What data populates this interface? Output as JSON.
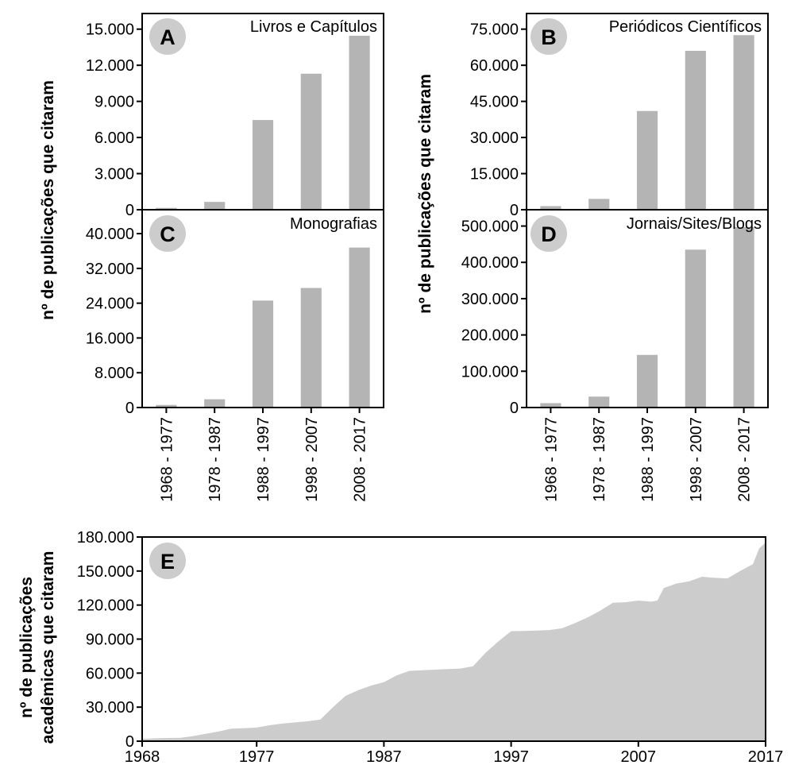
{
  "y_axis_label_top": "nº de publicações que citaram",
  "y_axis_label_bottom_line1": "nº de publicações",
  "y_axis_label_bottom_line2": "acadêmicas que citaram",
  "categories": [
    "1968 - 1977",
    "1978 - 1987",
    "1988 - 1997",
    "1998 - 2007",
    "2008 - 2017"
  ],
  "bar_color": "#b4b4b4",
  "area_color": "#cccccc",
  "badge_color": "#cccccc",
  "chart_data": [
    {
      "type": "bar",
      "panel": "A",
      "title": "Livros e Capítulos",
      "ylabel": "nº de publicações que citaram",
      "categories": [
        "1968 - 1977",
        "1978 - 1987",
        "1988 - 1997",
        "1998 - 2007",
        "2008 - 2017"
      ],
      "values": [
        150,
        650,
        7450,
        11300,
        14450
      ],
      "ylim": [
        0,
        16300
      ],
      "yticks": [
        0,
        3000,
        6000,
        9000,
        12000,
        15000
      ],
      "ytick_labels": [
        "0",
        "3.000",
        "6.000",
        "9.000",
        "12.000",
        "15.000"
      ],
      "xticks_visible": false
    },
    {
      "type": "bar",
      "panel": "B",
      "title": "Periódicos Científicos",
      "ylabel": "",
      "categories": [
        "1968 - 1977",
        "1978 - 1987",
        "1988 - 1997",
        "1998 - 2007",
        "2008 - 2017"
      ],
      "values": [
        1500,
        4500,
        41000,
        66000,
        72500
      ],
      "ylim": [
        0,
        81500
      ],
      "yticks": [
        0,
        15000,
        30000,
        45000,
        60000,
        75000
      ],
      "ytick_labels": [
        "0",
        "15.000",
        "30.000",
        "45.000",
        "60.000",
        "75.000"
      ],
      "xticks_visible": false
    },
    {
      "type": "bar",
      "panel": "C",
      "title": "Monografias",
      "ylabel": "",
      "categories": [
        "1968 - 1977",
        "1978 - 1987",
        "1988 - 1997",
        "1998 - 2007",
        "2008 - 2017"
      ],
      "values": [
        600,
        1900,
        24600,
        27500,
        36800
      ],
      "ylim": [
        0,
        45500
      ],
      "yticks": [
        0,
        8000,
        16000,
        24000,
        32000,
        40000
      ],
      "ytick_labels": [
        "0",
        "8.000",
        "16.000",
        "24.000",
        "32.000",
        "40.000"
      ],
      "xticks_visible": true
    },
    {
      "type": "bar",
      "panel": "D",
      "title": "Jornais/Sites/Blogs",
      "ylabel": "nº de publicações que citaram",
      "categories": [
        "1968 - 1977",
        "1978 - 1987",
        "1988 - 1997",
        "1998 - 2007",
        "2008 - 2017"
      ],
      "values": [
        12000,
        30000,
        145000,
        435000,
        497000
      ],
      "ylim": [
        0,
        545000
      ],
      "yticks": [
        0,
        100000,
        200000,
        300000,
        400000,
        500000
      ],
      "ytick_labels": [
        "0",
        "100.000",
        "200.000",
        "300.000",
        "400.000",
        "500.000"
      ],
      "xticks_visible": true
    },
    {
      "type": "area",
      "panel": "E",
      "title": "",
      "xlabel": "",
      "ylabel": "nº de publicações acadêmicas que citaram",
      "xlim": [
        1968,
        2017
      ],
      "ylim": [
        0,
        180000
      ],
      "xticks": [
        1968,
        1977,
        1987,
        1997,
        2007,
        2017
      ],
      "xtick_labels": [
        "1968",
        "1977",
        "1987",
        "1997",
        "2007",
        "2017"
      ],
      "yticks": [
        0,
        30000,
        60000,
        90000,
        120000,
        150000,
        180000
      ],
      "ytick_labels": [
        "0",
        "30.000",
        "60.000",
        "90.000",
        "120.000",
        "150.000",
        "180.000"
      ],
      "x": [
        1968,
        1969,
        1970,
        1971,
        1972,
        1973,
        1974,
        1975,
        1976,
        1977,
        1978,
        1979,
        1980,
        1981,
        1982,
        1983,
        1984,
        1985,
        1986,
        1987,
        1988,
        1989,
        1990,
        1991,
        1992,
        1993,
        1994,
        1995,
        1996,
        1997,
        1998,
        1999,
        2000,
        2001,
        2002,
        2003,
        2004,
        2005,
        2006,
        2007,
        2008,
        2008.5,
        2009,
        2010,
        2011,
        2012,
        2013,
        2014,
        2015,
        2016,
        2016.5,
        2017
      ],
      "y": [
        2000,
        2500,
        2800,
        3000,
        4500,
        6500,
        8500,
        11000,
        11500,
        12000,
        14000,
        15500,
        16500,
        17500,
        19000,
        30000,
        40000,
        45000,
        49000,
        52000,
        58000,
        62000,
        62500,
        63000,
        63500,
        64000,
        66000,
        78000,
        88000,
        97000,
        97200,
        97500,
        98000,
        99500,
        104000,
        109000,
        115000,
        122000,
        122500,
        124000,
        123000,
        124000,
        135000,
        139000,
        141000,
        145000,
        144000,
        143500,
        150000,
        156000,
        170000,
        175000
      ]
    }
  ]
}
